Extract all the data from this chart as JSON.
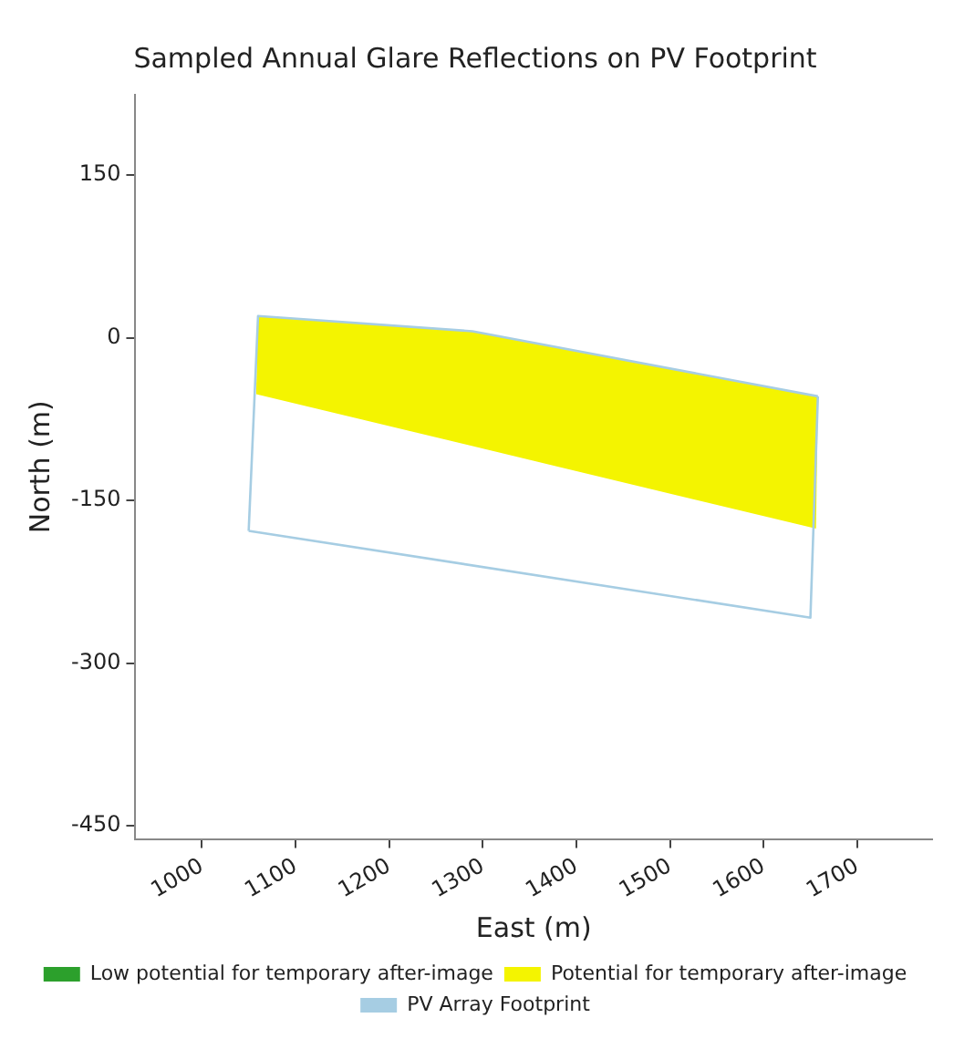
{
  "chart_data": {
    "type": "line",
    "title": "Sampled Annual Glare Reflections on PV Footprint",
    "xlabel": "East (m)",
    "ylabel": "North (m)",
    "xlim": [
      929,
      1780
    ],
    "xticks": [
      1000,
      1100,
      1200,
      1300,
      1400,
      1500,
      1600,
      1700
    ],
    "ylim": [
      -462,
      224
    ],
    "yticks": [
      -450,
      -300,
      -150,
      0,
      150
    ],
    "grid": false,
    "legend": "bottom",
    "marker": "none",
    "series": [
      {
        "name": "Low potential for temporary after-image",
        "type": "area",
        "color": "#2ca02c"
      },
      {
        "name": "Potential for temporary after-image",
        "type": "area",
        "color": "#f4f400",
        "x": [
          1060,
          1289,
          1658,
          1656,
          1058,
          1060
        ],
        "values": [
          20,
          6,
          -54,
          -176,
          -52,
          20
        ]
      },
      {
        "name": "PV Array Footprint",
        "type": "line",
        "color": "#a6cde3",
        "x": [
          1050,
          1060,
          1289,
          1658
        ],
        "values": [
          -178,
          20,
          6,
          -54
        ]
      },
      {
        "color": "#a6cde3",
        "x": [
          1050,
          1650,
          1658
        ],
        "values": [
          -178,
          -258,
          -54
        ]
      }
    ]
  }
}
